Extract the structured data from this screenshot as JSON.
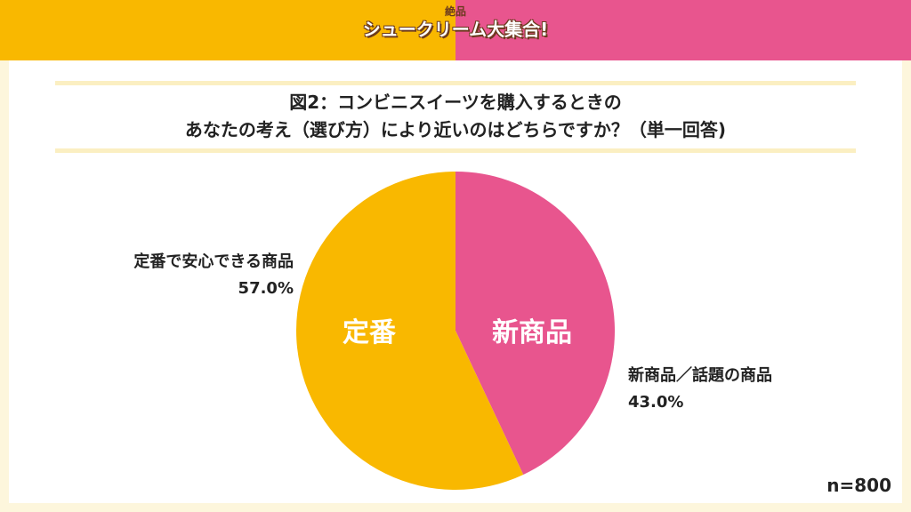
{
  "header": {
    "logo_small": "絶品",
    "logo_main": "シュークリーム大集合!",
    "colors": {
      "left": "#F9B800",
      "right": "#E8558E"
    }
  },
  "title": {
    "line1": "図2：コンビニスイーツを購入するときの",
    "line2": "あなたの考え（選び方）により近いのはどちらですか？（単一回答)"
  },
  "chart_data": {
    "type": "pie",
    "title": "図2：コンビニスイーツを購入するときの あなたの考え（選び方）により近いのはどちらですか？（単一回答)",
    "start": "12 o'clock, clockwise",
    "slices": [
      {
        "label": "新商品／話題の商品",
        "short_label": "新商品",
        "value": 43.0,
        "value_text": "43.0%",
        "color": "#E8558E"
      },
      {
        "label": "定番で安心できる商品",
        "short_label": "定番",
        "value": 57.0,
        "value_text": "57.0%",
        "color": "#F9B800"
      }
    ],
    "note": "n=800"
  }
}
